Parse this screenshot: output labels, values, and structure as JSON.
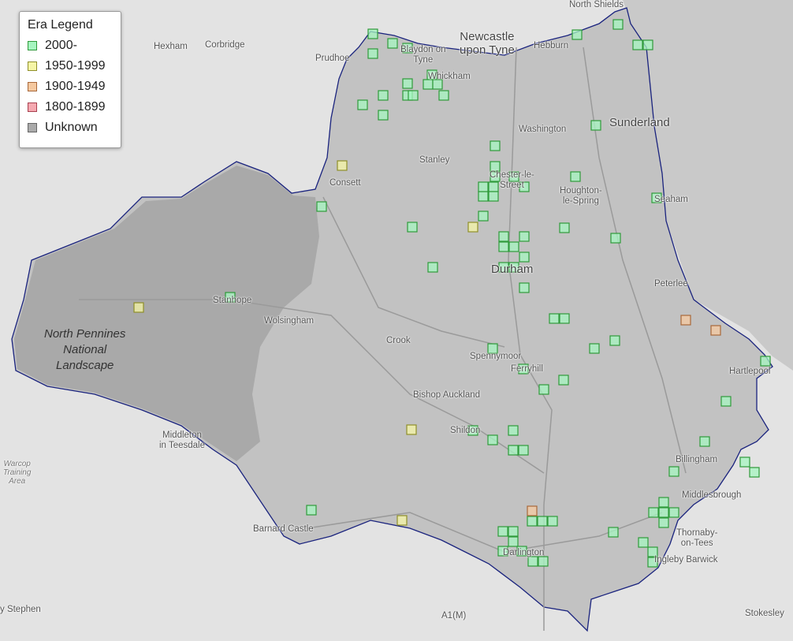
{
  "legend": {
    "title": "Era Legend",
    "items": [
      {
        "label": "2000-",
        "fill": "#a6f5c0",
        "stroke": "#2f9a3a"
      },
      {
        "label": "1950-1999",
        "fill": "#f5f5a6",
        "stroke": "#8f8f2a"
      },
      {
        "label": "1900-1949",
        "fill": "#f5c9a0",
        "stroke": "#a8683a"
      },
      {
        "label": "1800-1899",
        "fill": "#f5a8b0",
        "stroke": "#a8404f"
      },
      {
        "label": "Unknown",
        "fill": "#aaaaaa",
        "stroke": "#666666"
      }
    ]
  },
  "colors": {
    "boundary": "#1a237e",
    "region": "#c2c2c2",
    "park": "#a9a9a9",
    "sea": "#c9c9c9",
    "land": "#e3e3e3"
  },
  "places": {
    "north_shields": "North Shields",
    "newcastle": "Newcastle\nupon Tyne",
    "hexham": "Hexham",
    "corbridge": "Corbridge",
    "prudhoe": "Prudhoe",
    "blaydon": "Blaydon on\nTyne",
    "whickham": "Whickham",
    "hebburn": "Hebburn",
    "sunderland": "Sunderland",
    "washington": "Washington",
    "stanley": "Stanley",
    "consett": "Consett",
    "chester": "Chester-le-\nStreet",
    "houghton": "Houghton-\nle-Spring",
    "seaham": "Seaham",
    "durham": "Durham",
    "peterlee": "Peterlee",
    "stanhope": "Stanhope",
    "wolsingham": "Wolsingham",
    "crook": "Crook",
    "spennymoor": "Spennymoor",
    "ferryhill": "Ferryhill",
    "hartlepool": "Hartlepool",
    "bishop": "Bishop Auckland",
    "shildon": "Shildon",
    "billingham": "Billingham",
    "middleton": "Middleton\nin Teesdale",
    "middlesbrough": "Middlesbrough",
    "thornaby": "Thornaby-\non-Tees",
    "barnard": "Barnard Castle",
    "darlington": "Darlington",
    "ingleby": "Ingleby Barwick",
    "stokesley": "Stokesley",
    "a1m": "A1(M)",
    "warcop": "Warcop\nTraining\nArea",
    "stephen": "y Stephen",
    "park": "North Pennines\nNational\nLandscape"
  },
  "markers_era_counts": {
    "2000-": 84,
    "1950-1999": 5,
    "1900-1949": 3
  }
}
